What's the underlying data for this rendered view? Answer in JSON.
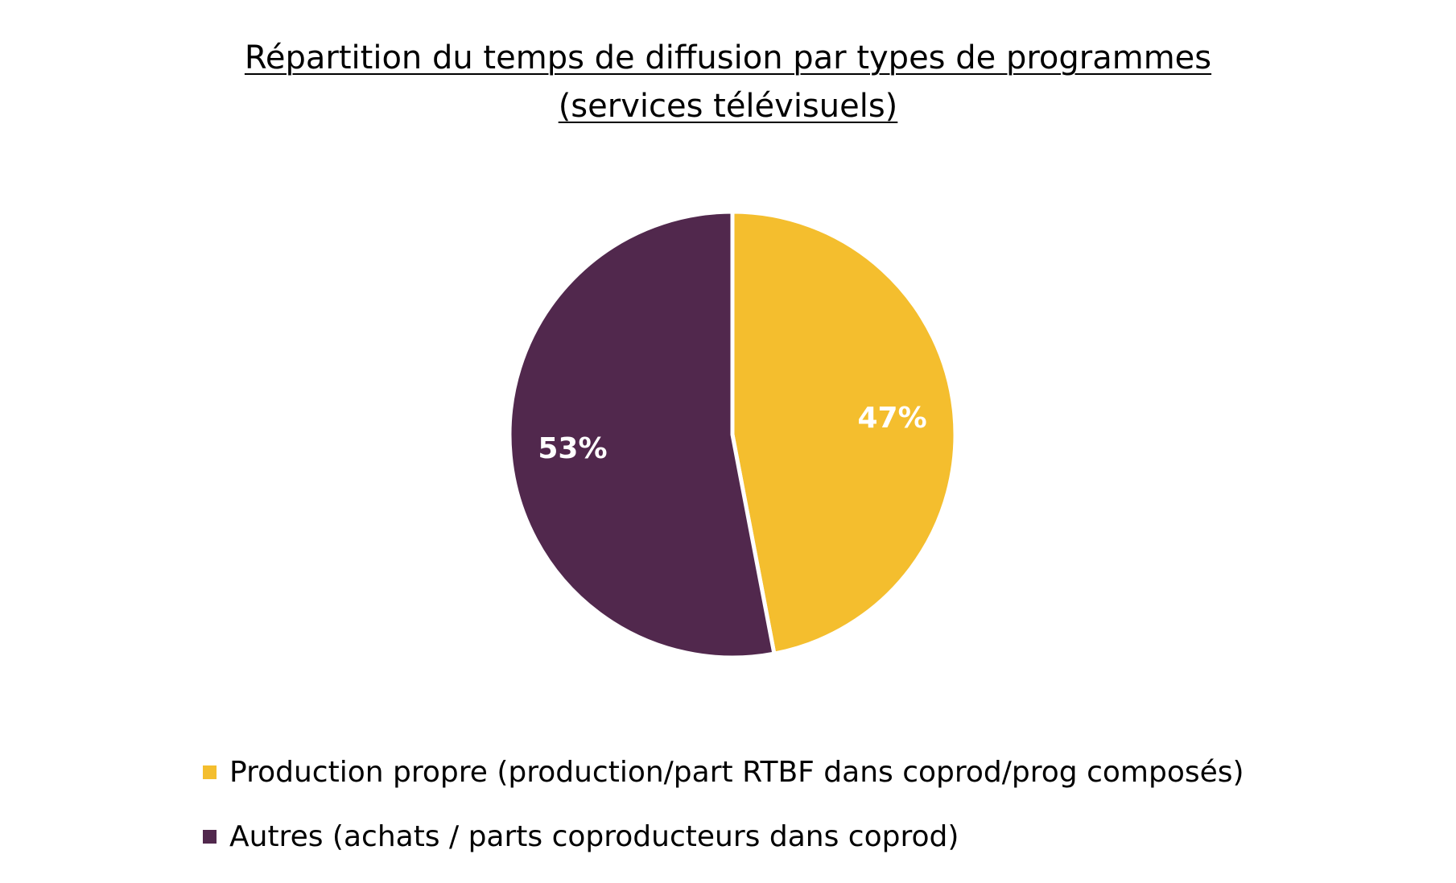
{
  "chart_data": {
    "type": "pie",
    "title_line1": "Répartition du temps de diffusion par types de programmes",
    "title_line2": "(services télévisuels)",
    "legend_position": "bottom",
    "slices": [
      {
        "label": "Production propre (production/part RTBF dans coprod/prog composés)",
        "value": 47,
        "display": "47%",
        "color": "#F4BE2E"
      },
      {
        "label": "Autres (achats / parts coproducteurs dans coprod)",
        "value": 53,
        "display": "53%",
        "color": "#51284D"
      }
    ]
  }
}
